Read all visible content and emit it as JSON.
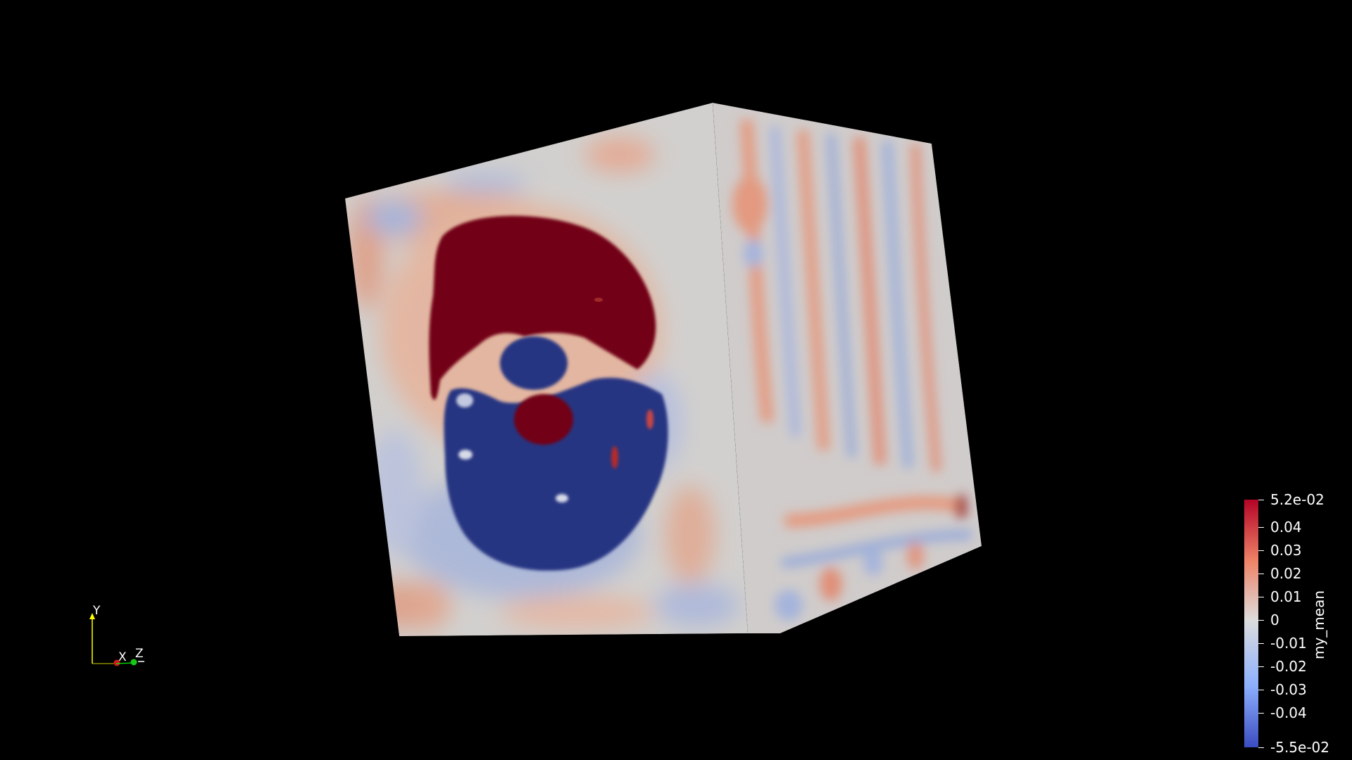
{
  "scalar_bar": {
    "title": "my_mean",
    "max_label": "5.2e-02",
    "min_label": "-5.5e-02",
    "ticks": [
      "0.04",
      "0.03",
      "0.02",
      "0.01",
      "0",
      "-0.01",
      "-0.02",
      "-0.03",
      "-0.04"
    ],
    "range": [
      -0.055,
      0.052
    ],
    "colormap": [
      "#3b4cc0",
      "#dddddd",
      "#b40426"
    ]
  },
  "orientation_axes": {
    "x_label": "X",
    "y_label": "Y",
    "z_label": "Z",
    "x_color": "#ff0000",
    "y_color": "#ffff00",
    "z_color": "#00ff00"
  },
  "colors": {
    "background": "#000000",
    "high": "#720014",
    "low": "#283582",
    "neutral": "#d0d0d0"
  }
}
